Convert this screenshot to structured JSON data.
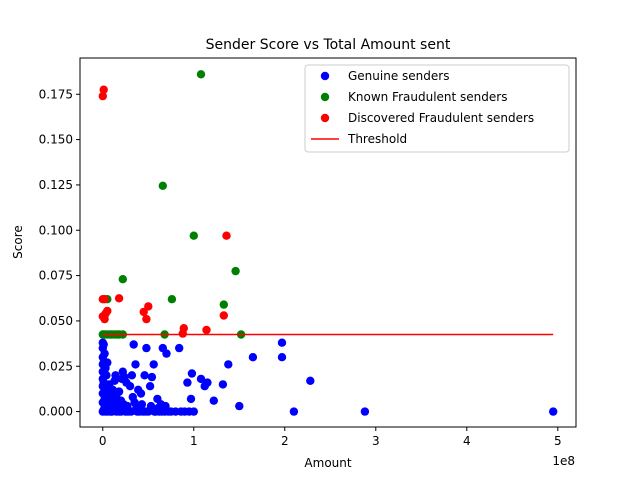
{
  "chart_data": {
    "type": "scatter",
    "title": "Sender Score vs Total Amount sent",
    "xlabel": "Amount",
    "ylabel": "Score",
    "x_offset_label": "1e8",
    "xlim": [
      -0.25,
      5.2
    ],
    "ylim": [
      -0.0085,
      0.195
    ],
    "x_ticks": [
      0,
      1,
      2,
      3,
      4,
      5
    ],
    "x_tick_labels": [
      "0",
      "1",
      "2",
      "3",
      "4",
      "5"
    ],
    "y_ticks": [
      0.0,
      0.025,
      0.05,
      0.075,
      0.1,
      0.125,
      0.15,
      0.175
    ],
    "y_tick_labels": [
      "0.000",
      "0.025",
      "0.050",
      "0.075",
      "0.100",
      "0.125",
      "0.150",
      "0.175"
    ],
    "grid": false,
    "legend_position": "top-right",
    "series": [
      {
        "name": "Genuine senders",
        "color": "#0000ff",
        "marker": "circle",
        "points": [
          [
            0.0,
            0.0
          ],
          [
            0.01,
            0.001
          ],
          [
            0.02,
            0.002
          ],
          [
            0.03,
            0.0
          ],
          [
            0.04,
            0.003
          ],
          [
            0.05,
            0.001
          ],
          [
            0.06,
            0.0
          ],
          [
            0.08,
            0.002
          ],
          [
            0.1,
            0.0
          ],
          [
            0.12,
            0.004
          ],
          [
            0.0,
            0.005
          ],
          [
            0.02,
            0.007
          ],
          [
            0.04,
            0.006
          ],
          [
            0.06,
            0.008
          ],
          [
            0.0,
            0.01
          ],
          [
            0.02,
            0.012
          ],
          [
            0.05,
            0.011
          ],
          [
            0.0,
            0.014
          ],
          [
            0.03,
            0.015
          ],
          [
            0.0,
            0.018
          ],
          [
            0.02,
            0.02
          ],
          [
            0.0,
            0.022
          ],
          [
            0.03,
            0.024
          ],
          [
            0.0,
            0.026
          ],
          [
            0.01,
            0.027
          ],
          [
            0.0,
            0.03
          ],
          [
            0.02,
            0.032
          ],
          [
            0.0,
            0.035
          ],
          [
            0.01,
            0.037
          ],
          [
            0.0,
            0.038
          ],
          [
            0.05,
            0.027
          ],
          [
            0.04,
            0.02
          ],
          [
            0.07,
            0.015
          ],
          [
            0.08,
            0.013
          ],
          [
            0.09,
            0.01
          ],
          [
            0.1,
            0.008
          ],
          [
            0.11,
            0.012
          ],
          [
            0.13,
            0.017
          ],
          [
            0.14,
            0.02
          ],
          [
            0.15,
            0.009
          ],
          [
            0.16,
            0.005
          ],
          [
            0.17,
            0.003
          ],
          [
            0.18,
            0.0
          ],
          [
            0.19,
            0.002
          ],
          [
            0.2,
            0.006
          ],
          [
            0.21,
            0.018
          ],
          [
            0.22,
            0.022
          ],
          [
            0.24,
            0.019
          ],
          [
            0.25,
            0.0
          ],
          [
            0.26,
            0.016
          ],
          [
            0.28,
            0.0
          ],
          [
            0.3,
            0.014
          ],
          [
            0.32,
            0.02
          ],
          [
            0.34,
            0.037
          ],
          [
            0.36,
            0.026
          ],
          [
            0.38,
            0.0
          ],
          [
            0.4,
            0.0
          ],
          [
            0.42,
            0.01
          ],
          [
            0.44,
            0.0
          ],
          [
            0.46,
            0.02
          ],
          [
            0.48,
            0.035
          ],
          [
            0.5,
            0.0
          ],
          [
            0.52,
            0.014
          ],
          [
            0.54,
            0.019
          ],
          [
            0.56,
            0.026
          ],
          [
            0.58,
            0.0
          ],
          [
            0.6,
            0.007
          ],
          [
            0.62,
            0.0
          ],
          [
            0.64,
            0.004
          ],
          [
            0.66,
            0.035
          ],
          [
            0.68,
            0.0
          ],
          [
            0.7,
            0.032
          ],
          [
            0.72,
            0.0
          ],
          [
            0.8,
            0.0
          ],
          [
            0.84,
            0.035
          ],
          [
            0.9,
            0.0
          ],
          [
            0.93,
            0.016
          ],
          [
            0.97,
            0.007
          ],
          [
            0.98,
            0.021
          ],
          [
            1.0,
            0.0
          ],
          [
            1.08,
            0.018
          ],
          [
            1.12,
            0.014
          ],
          [
            1.15,
            0.016
          ],
          [
            1.22,
            0.006
          ],
          [
            1.32,
            0.015
          ],
          [
            1.38,
            0.026
          ],
          [
            1.5,
            0.003
          ],
          [
            1.65,
            0.03
          ],
          [
            1.97,
            0.038
          ],
          [
            1.97,
            0.03
          ],
          [
            2.1,
            0.0
          ],
          [
            2.28,
            0.017
          ],
          [
            2.88,
            0.0
          ],
          [
            4.95,
            0.0
          ],
          [
            0.01,
            0.016
          ],
          [
            0.04,
            0.013
          ],
          [
            0.06,
            0.003
          ],
          [
            0.09,
            0.0
          ],
          [
            0.11,
            0.006
          ],
          [
            0.13,
            0.002
          ],
          [
            0.15,
            0.0
          ],
          [
            0.18,
            0.011
          ],
          [
            0.2,
            0.0
          ],
          [
            0.23,
            0.004
          ],
          [
            0.27,
            0.003
          ],
          [
            0.31,
            0.0
          ],
          [
            0.33,
            0.008
          ],
          [
            0.35,
            0.005
          ],
          [
            0.37,
            0.002
          ],
          [
            0.39,
            0.012
          ],
          [
            0.43,
            0.004
          ],
          [
            0.47,
            0.0
          ],
          [
            0.53,
            0.003
          ],
          [
            0.57,
            0.0
          ],
          [
            0.61,
            0.002
          ],
          [
            0.65,
            0.0
          ],
          [
            0.69,
            0.003
          ],
          [
            0.75,
            0.0
          ],
          [
            0.86,
            0.0
          ],
          [
            0.95,
            0.0
          ]
        ]
      },
      {
        "name": "Known Fraudulent senders",
        "color": "#008000",
        "marker": "circle",
        "points": [
          [
            0.0,
            0.0425
          ],
          [
            0.02,
            0.0425
          ],
          [
            0.05,
            0.0425
          ],
          [
            0.08,
            0.0425
          ],
          [
            0.1,
            0.0425
          ],
          [
            0.13,
            0.0425
          ],
          [
            0.16,
            0.0425
          ],
          [
            0.18,
            0.0425
          ],
          [
            0.22,
            0.0425
          ],
          [
            0.05,
            0.062
          ],
          [
            0.22,
            0.073
          ],
          [
            0.66,
            0.1245
          ],
          [
            0.68,
            0.0425
          ],
          [
            0.76,
            0.062
          ],
          [
            1.0,
            0.097
          ],
          [
            1.08,
            0.186
          ],
          [
            1.33,
            0.059
          ],
          [
            1.46,
            0.0775
          ],
          [
            1.52,
            0.0425
          ]
        ]
      },
      {
        "name": "Discovered Fraudulent senders",
        "color": "#ff0000",
        "marker": "circle",
        "points": [
          [
            0.0,
            0.174
          ],
          [
            0.01,
            0.1775
          ],
          [
            0.0,
            0.062
          ],
          [
            0.02,
            0.062
          ],
          [
            0.0,
            0.0525
          ],
          [
            0.02,
            0.051
          ],
          [
            0.03,
            0.054
          ],
          [
            0.05,
            0.0555
          ],
          [
            0.18,
            0.0625
          ],
          [
            0.45,
            0.055
          ],
          [
            0.48,
            0.051
          ],
          [
            0.5,
            0.058
          ],
          [
            0.88,
            0.043
          ],
          [
            0.89,
            0.046
          ],
          [
            1.14,
            0.045
          ],
          [
            1.33,
            0.053
          ],
          [
            1.36,
            0.097
          ]
        ]
      },
      {
        "name": "Threshold",
        "color": "#ff0000",
        "marker": "line",
        "points": [
          [
            0.0,
            0.0425
          ],
          [
            4.95,
            0.0425
          ]
        ]
      }
    ]
  }
}
